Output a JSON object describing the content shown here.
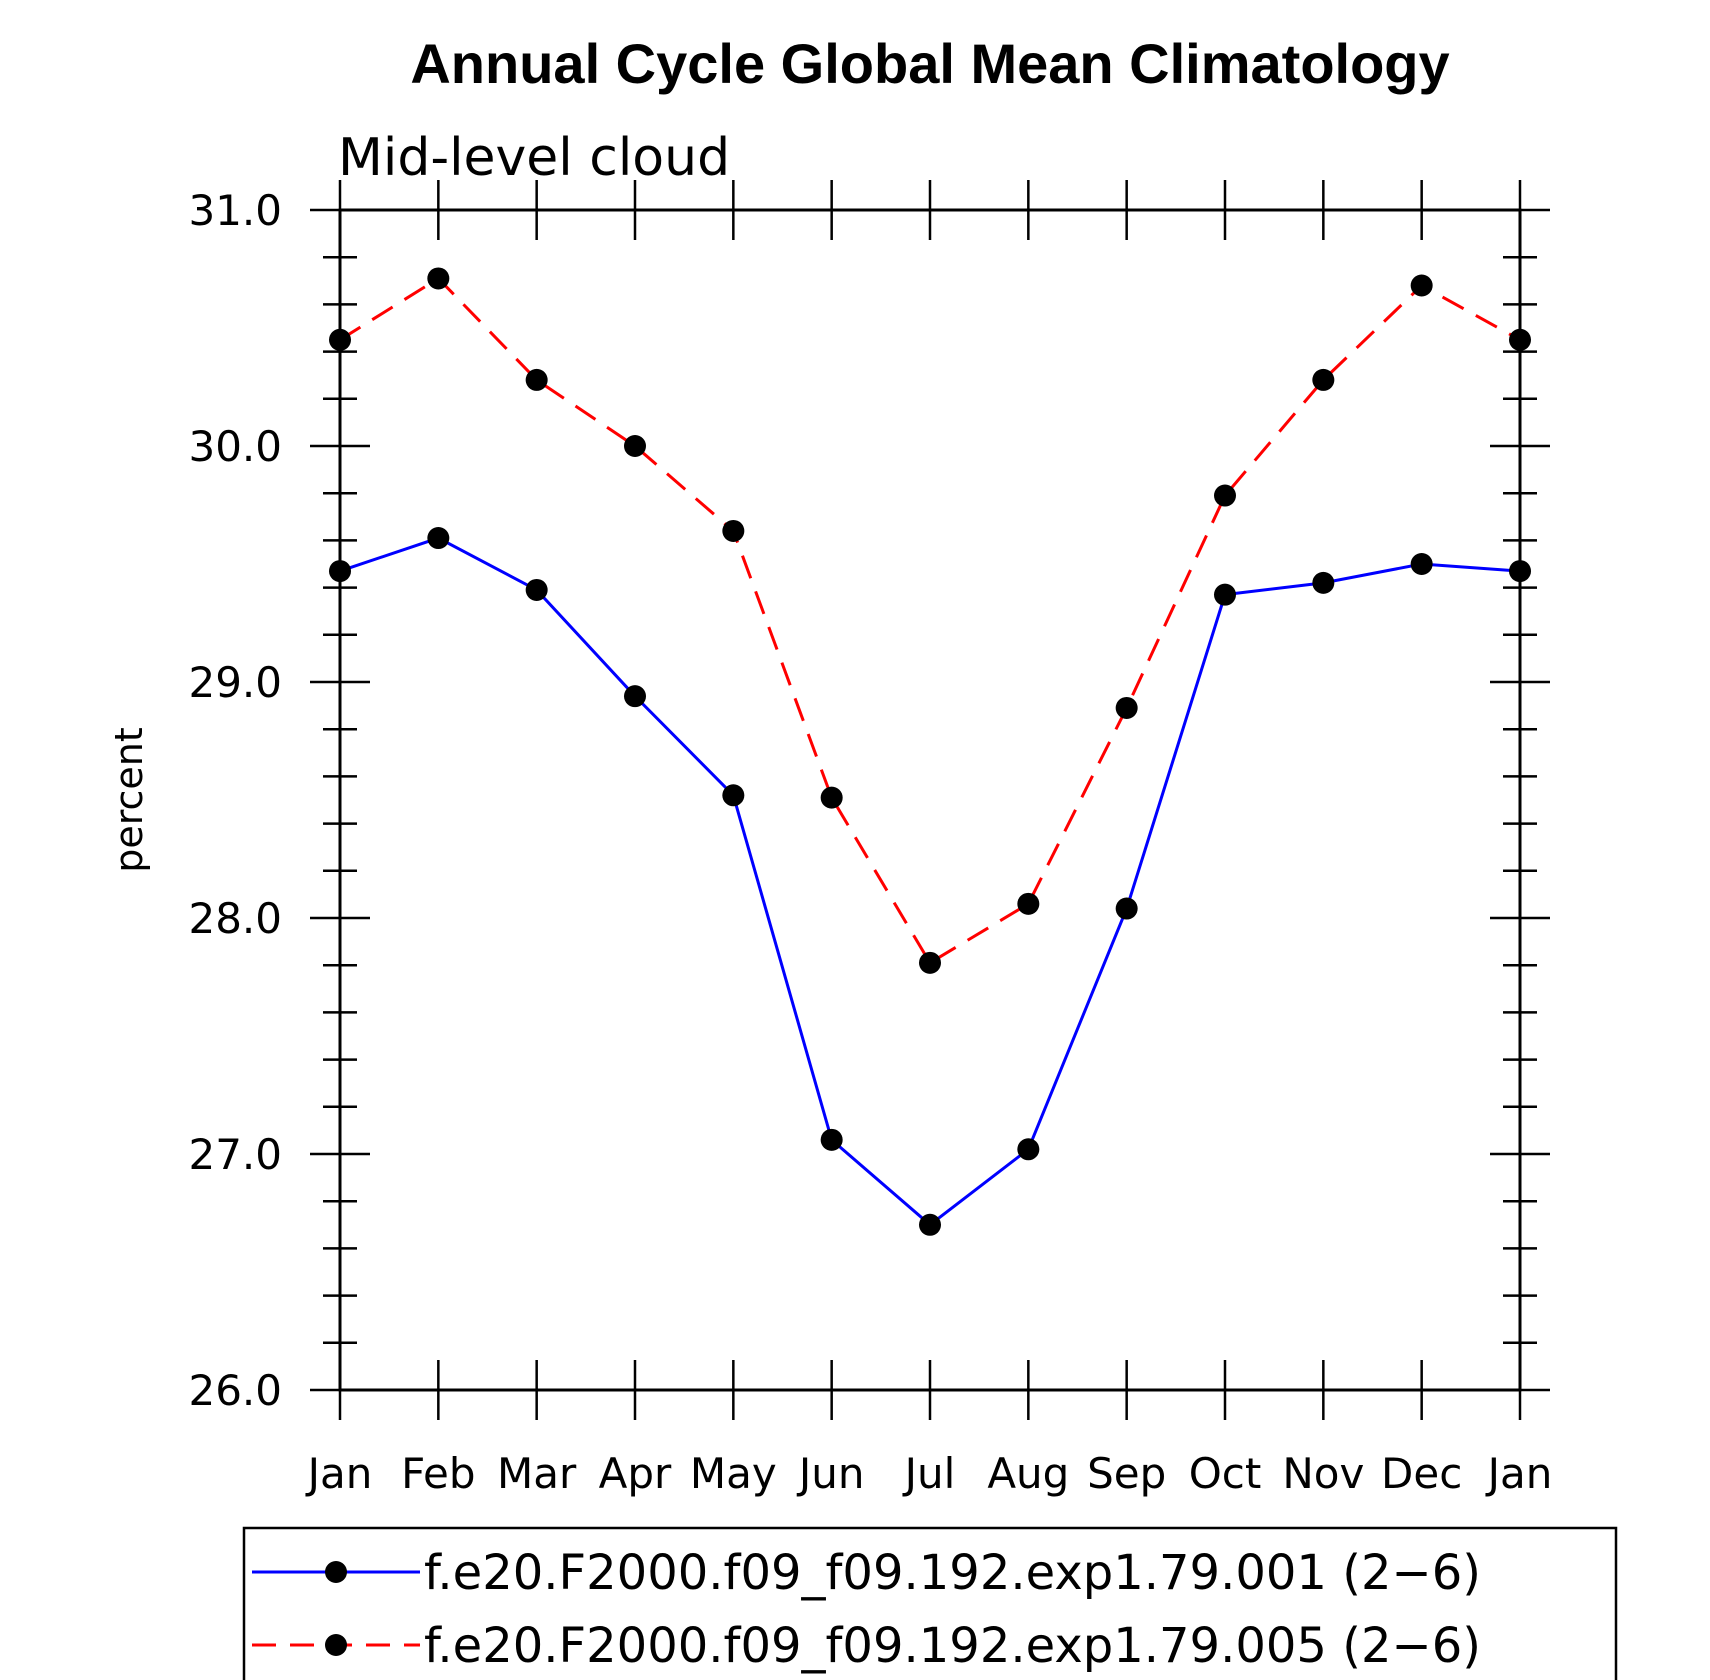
{
  "chart_data": {
    "type": "line",
    "title": "Annual Cycle Global Mean Climatology",
    "subtitle": "Mid-level cloud",
    "xlabel": "",
    "ylabel": "percent",
    "ylim": [
      26.0,
      31.0
    ],
    "y_ticks": [
      "26.0",
      "27.0",
      "28.0",
      "29.0",
      "30.0",
      "31.0"
    ],
    "categories": [
      "Jan",
      "Feb",
      "Mar",
      "Apr",
      "May",
      "Jun",
      "Jul",
      "Aug",
      "Sep",
      "Oct",
      "Nov",
      "Dec",
      "Jan"
    ],
    "grid": false,
    "legend_position": "bottom",
    "series": [
      {
        "name": "f.e20.F2000.f09_f09.192.exp1.79.001 (2−6)",
        "color": "#0000ff",
        "dash": "solid",
        "marker": "filled-circle",
        "values": [
          29.47,
          29.61,
          29.39,
          28.94,
          28.52,
          27.06,
          26.7,
          27.02,
          28.04,
          29.37,
          29.42,
          29.5,
          29.47
        ]
      },
      {
        "name": "f.e20.F2000.f09_f09.192.exp1.79.005 (2−6)",
        "color": "#ff0000",
        "dash": "dashed",
        "marker": "filled-circle",
        "values": [
          30.45,
          30.71,
          30.28,
          30.0,
          29.64,
          28.51,
          27.81,
          28.06,
          28.89,
          29.79,
          30.28,
          30.68,
          30.45
        ]
      }
    ]
  }
}
